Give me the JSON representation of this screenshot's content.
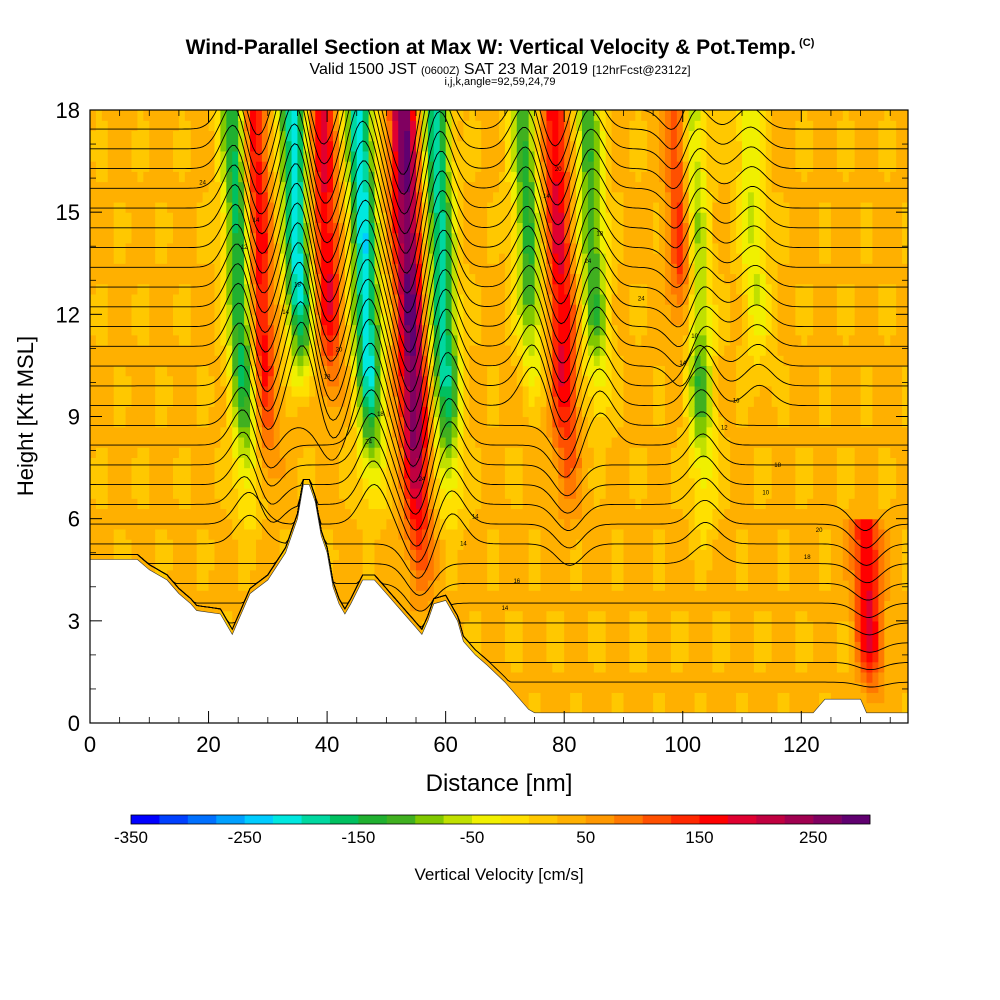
{
  "title": "Wind-Parallel Section at Max W: Vertical Velocity & Pot.Temp.",
  "title_units": "(C)",
  "subtitle": {
    "part1": "Valid 1500 JST ",
    "part2": "(0600Z)",
    "part3": " SAT 23 Mar 2019 ",
    "part4": "[12hrFcst@2312z]"
  },
  "indices": "i,j,k,angle=92,59,24,79",
  "chart_data": {
    "type": "heatmap",
    "xlabel": "Distance [nm]",
    "ylabel": "Height [Kft MSL]",
    "xlim": [
      0,
      138
    ],
    "ylim": [
      0,
      18
    ],
    "x_ticks": [
      0,
      20,
      40,
      60,
      80,
      100,
      120
    ],
    "x_tick_labels": [
      "0",
      "20",
      "40",
      "60",
      "80",
      "100",
      "120"
    ],
    "y_ticks": [
      0,
      3,
      6,
      9,
      12,
      15,
      18
    ],
    "y_tick_labels": [
      "0",
      "3",
      "6",
      "9",
      "12",
      "15",
      "18"
    ],
    "colorbar": {
      "label": "Vertical Velocity [cm/s]",
      "ticks": [
        -350,
        -250,
        -150,
        -50,
        50,
        150,
        250
      ],
      "tick_labels": [
        "-350",
        "-250",
        "-150",
        "-50",
        "50",
        "150",
        "250"
      ],
      "colors": [
        "#0000ff",
        "#0040ff",
        "#0070ff",
        "#00a0ff",
        "#00ccff",
        "#00e8e0",
        "#00d8a0",
        "#00c060",
        "#20b030",
        "#40b020",
        "#80c800",
        "#c0e000",
        "#f0f000",
        "#ffe000",
        "#ffc800",
        "#ffb000",
        "#ff9800",
        "#ff7800",
        "#ff5000",
        "#ff2800",
        "#ff0000",
        "#e00030",
        "#c00040",
        "#a00050",
        "#800060",
        "#600070"
      ]
    },
    "terrain": [
      [
        0,
        4.8
      ],
      [
        8,
        4.8
      ],
      [
        10,
        4.5
      ],
      [
        13,
        4.2
      ],
      [
        15,
        3.8
      ],
      [
        17,
        3.5
      ],
      [
        18,
        3.3
      ],
      [
        22,
        3.2
      ],
      [
        24,
        2.6
      ],
      [
        25,
        3.0
      ],
      [
        27,
        3.8
      ],
      [
        30,
        4.2
      ],
      [
        33,
        5.0
      ],
      [
        35,
        6.0
      ],
      [
        36,
        7.0
      ],
      [
        37,
        7.0
      ],
      [
        38,
        6.5
      ],
      [
        39,
        5.5
      ],
      [
        40,
        5.0
      ],
      [
        41,
        4.0
      ],
      [
        42,
        3.5
      ],
      [
        43,
        3.2
      ],
      [
        44,
        3.5
      ],
      [
        46,
        4.2
      ],
      [
        48,
        4.2
      ],
      [
        50,
        3.8
      ],
      [
        53,
        3.2
      ],
      [
        55,
        2.8
      ],
      [
        56,
        2.6
      ],
      [
        57,
        3.0
      ],
      [
        58,
        3.5
      ],
      [
        60,
        3.6
      ],
      [
        62,
        3.0
      ],
      [
        63,
        2.4
      ],
      [
        65,
        2.0
      ],
      [
        67,
        1.7
      ],
      [
        70,
        1.2
      ],
      [
        72,
        0.8
      ],
      [
        74,
        0.4
      ],
      [
        75,
        0.3
      ],
      [
        122,
        0.3
      ],
      [
        124,
        0.7
      ],
      [
        130,
        0.7
      ],
      [
        131,
        0.3
      ],
      [
        138,
        0.3
      ]
    ],
    "w_features": [
      {
        "x": 27,
        "top": 18,
        "bottom": 5.0,
        "amp": -200
      },
      {
        "x": 30,
        "top": 18,
        "bottom": 6.0,
        "amp": 150
      },
      {
        "x": 36,
        "top": 18,
        "bottom": 9.0,
        "amp": -250
      },
      {
        "x": 41,
        "top": 18,
        "bottom": 8.5,
        "amp": 150
      },
      {
        "x": 48,
        "top": 18,
        "bottom": 5.5,
        "amp": -250
      },
      {
        "x": 56,
        "top": 18,
        "bottom": 2.8,
        "amp": 250
      },
      {
        "x": 61,
        "top": 18,
        "bottom": 5.0,
        "amp": -220
      },
      {
        "x": 75,
        "top": 18,
        "bottom": 9.0,
        "amp": -160
      },
      {
        "x": 81,
        "top": 18,
        "bottom": 5.0,
        "amp": 150
      },
      {
        "x": 86,
        "top": 18,
        "bottom": 8.0,
        "amp": -150
      },
      {
        "x": 101,
        "top": 18,
        "bottom": 10.0,
        "amp": 150
      },
      {
        "x": 104,
        "top": 18,
        "bottom": 4.5,
        "amp": -150
      },
      {
        "x": 113,
        "top": 18,
        "bottom": 9.0,
        "amp": -80
      },
      {
        "x": 132,
        "top": 5.5,
        "bottom": 0.3,
        "amp": 150
      }
    ],
    "contour_labels": [
      "24",
      "24",
      "24",
      "18",
      "18",
      "14",
      "10",
      "14",
      "14",
      "12",
      "12",
      "14",
      "14",
      "24",
      "24",
      "24",
      "18",
      "18",
      "18",
      "20",
      "20",
      "20",
      "18",
      "18",
      "16",
      "16",
      "14",
      "14",
      "10"
    ]
  }
}
